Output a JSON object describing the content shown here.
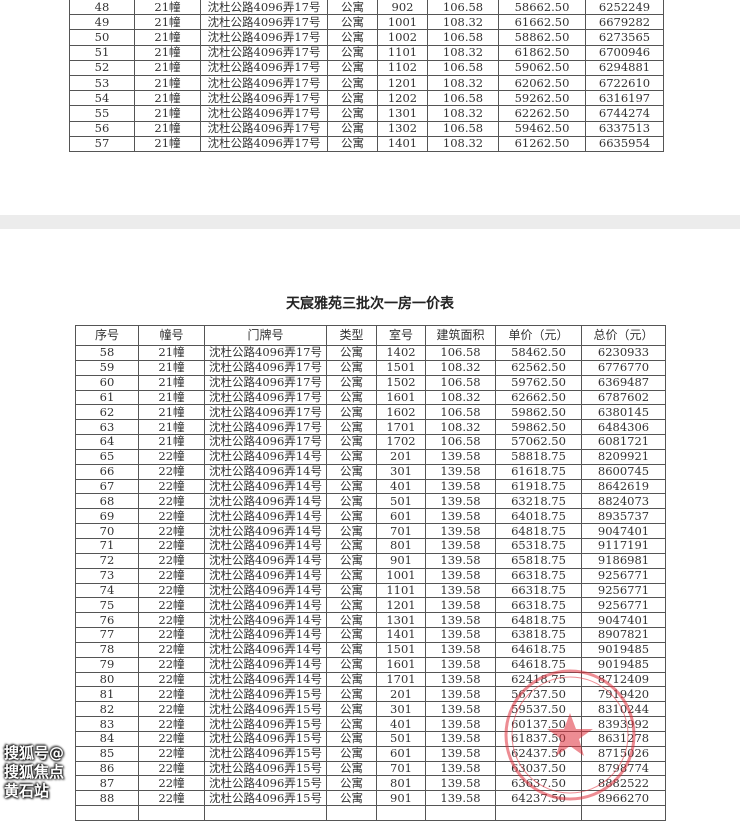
{
  "page1": {
    "rows": [
      [
        "48",
        "21幢",
        "沈杜公路4096弄17号",
        "公寓",
        "902",
        "106.58",
        "58662.50",
        "6252249"
      ],
      [
        "49",
        "21幢",
        "沈杜公路4096弄17号",
        "公寓",
        "1001",
        "108.32",
        "61662.50",
        "6679282"
      ],
      [
        "50",
        "21幢",
        "沈杜公路4096弄17号",
        "公寓",
        "1002",
        "106.58",
        "58862.50",
        "6273565"
      ],
      [
        "51",
        "21幢",
        "沈杜公路4096弄17号",
        "公寓",
        "1101",
        "108.32",
        "61862.50",
        "6700946"
      ],
      [
        "52",
        "21幢",
        "沈杜公路4096弄17号",
        "公寓",
        "1102",
        "106.58",
        "59062.50",
        "6294881"
      ],
      [
        "53",
        "21幢",
        "沈杜公路4096弄17号",
        "公寓",
        "1201",
        "108.32",
        "62062.50",
        "6722610"
      ],
      [
        "54",
        "21幢",
        "沈杜公路4096弄17号",
        "公寓",
        "1202",
        "106.58",
        "59262.50",
        "6316197"
      ],
      [
        "55",
        "21幢",
        "沈杜公路4096弄17号",
        "公寓",
        "1301",
        "108.32",
        "62262.50",
        "6744274"
      ],
      [
        "56",
        "21幢",
        "沈杜公路4096弄17号",
        "公寓",
        "1302",
        "106.58",
        "59462.50",
        "6337513"
      ],
      [
        "57",
        "21幢",
        "沈杜公路4096弄17号",
        "公寓",
        "1401",
        "108.32",
        "61262.50",
        "6635954"
      ]
    ]
  },
  "page2": {
    "title": "天宸雅苑三批次一房一价表",
    "headers": [
      "序号",
      "幢号",
      "门牌号",
      "类型",
      "室号",
      "建筑面积",
      "单价（元）",
      "总价（元）"
    ],
    "rows": [
      [
        "58",
        "21幢",
        "沈杜公路4096弄17号",
        "公寓",
        "1402",
        "106.58",
        "58462.50",
        "6230933"
      ],
      [
        "59",
        "21幢",
        "沈杜公路4096弄17号",
        "公寓",
        "1501",
        "108.32",
        "62562.50",
        "6776770"
      ],
      [
        "60",
        "21幢",
        "沈杜公路4096弄17号",
        "公寓",
        "1502",
        "106.58",
        "59762.50",
        "6369487"
      ],
      [
        "61",
        "21幢",
        "沈杜公路4096弄17号",
        "公寓",
        "1601",
        "108.32",
        "62662.50",
        "6787602"
      ],
      [
        "62",
        "21幢",
        "沈杜公路4096弄17号",
        "公寓",
        "1602",
        "106.58",
        "59862.50",
        "6380145"
      ],
      [
        "63",
        "21幢",
        "沈杜公路4096弄17号",
        "公寓",
        "1701",
        "108.32",
        "59862.50",
        "6484306"
      ],
      [
        "64",
        "21幢",
        "沈杜公路4096弄17号",
        "公寓",
        "1702",
        "106.58",
        "57062.50",
        "6081721"
      ],
      [
        "65",
        "22幢",
        "沈杜公路4096弄14号",
        "公寓",
        "201",
        "139.58",
        "58818.75",
        "8209921"
      ],
      [
        "66",
        "22幢",
        "沈杜公路4096弄14号",
        "公寓",
        "301",
        "139.58",
        "61618.75",
        "8600745"
      ],
      [
        "67",
        "22幢",
        "沈杜公路4096弄14号",
        "公寓",
        "401",
        "139.58",
        "61918.75",
        "8642619"
      ],
      [
        "68",
        "22幢",
        "沈杜公路4096弄14号",
        "公寓",
        "501",
        "139.58",
        "63218.75",
        "8824073"
      ],
      [
        "69",
        "22幢",
        "沈杜公路4096弄14号",
        "公寓",
        "601",
        "139.58",
        "64018.75",
        "8935737"
      ],
      [
        "70",
        "22幢",
        "沈杜公路4096弄14号",
        "公寓",
        "701",
        "139.58",
        "64818.75",
        "9047401"
      ],
      [
        "71",
        "22幢",
        "沈杜公路4096弄14号",
        "公寓",
        "801",
        "139.58",
        "65318.75",
        "9117191"
      ],
      [
        "72",
        "22幢",
        "沈杜公路4096弄14号",
        "公寓",
        "901",
        "139.58",
        "65818.75",
        "9186981"
      ],
      [
        "73",
        "22幢",
        "沈杜公路4096弄14号",
        "公寓",
        "1001",
        "139.58",
        "66318.75",
        "9256771"
      ],
      [
        "74",
        "22幢",
        "沈杜公路4096弄14号",
        "公寓",
        "1101",
        "139.58",
        "66318.75",
        "9256771"
      ],
      [
        "75",
        "22幢",
        "沈杜公路4096弄14号",
        "公寓",
        "1201",
        "139.58",
        "66318.75",
        "9256771"
      ],
      [
        "76",
        "22幢",
        "沈杜公路4096弄14号",
        "公寓",
        "1301",
        "139.58",
        "64818.75",
        "9047401"
      ],
      [
        "77",
        "22幢",
        "沈杜公路4096弄14号",
        "公寓",
        "1401",
        "139.58",
        "63818.75",
        "8907821"
      ],
      [
        "78",
        "22幢",
        "沈杜公路4096弄14号",
        "公寓",
        "1501",
        "139.58",
        "64618.75",
        "9019485"
      ],
      [
        "79",
        "22幢",
        "沈杜公路4096弄14号",
        "公寓",
        "1601",
        "139.58",
        "64618.75",
        "9019485"
      ],
      [
        "80",
        "22幢",
        "沈杜公路4096弄14号",
        "公寓",
        "1701",
        "139.58",
        "62418.75",
        "8712409"
      ],
      [
        "81",
        "22幢",
        "沈杜公路4096弄15号",
        "公寓",
        "201",
        "139.58",
        "56737.50",
        "7919420"
      ],
      [
        "82",
        "22幢",
        "沈杜公路4096弄15号",
        "公寓",
        "301",
        "139.58",
        "59537.50",
        "8310244"
      ],
      [
        "83",
        "22幢",
        "沈杜公路4096弄15号",
        "公寓",
        "401",
        "139.58",
        "60137.50",
        "8393992"
      ],
      [
        "84",
        "22幢",
        "沈杜公路4096弄15号",
        "公寓",
        "501",
        "139.58",
        "61837.50",
        "8631278"
      ],
      [
        "85",
        "22幢",
        "沈杜公路4096弄15号",
        "公寓",
        "601",
        "139.58",
        "62437.50",
        "8715026"
      ],
      [
        "86",
        "22幢",
        "沈杜公路4096弄15号",
        "公寓",
        "701",
        "139.58",
        "63037.50",
        "8798774"
      ],
      [
        "87",
        "22幢",
        "沈杜公路4096弄15号",
        "公寓",
        "801",
        "139.58",
        "63637.50",
        "8882522"
      ],
      [
        "88",
        "22幢",
        "沈杜公路4096弄15号",
        "公寓",
        "901",
        "139.58",
        "64237.50",
        "8966270"
      ]
    ]
  },
  "watermark": "搜狐号@搜狐焦点黄石站",
  "stamp_color": "#e0303c"
}
